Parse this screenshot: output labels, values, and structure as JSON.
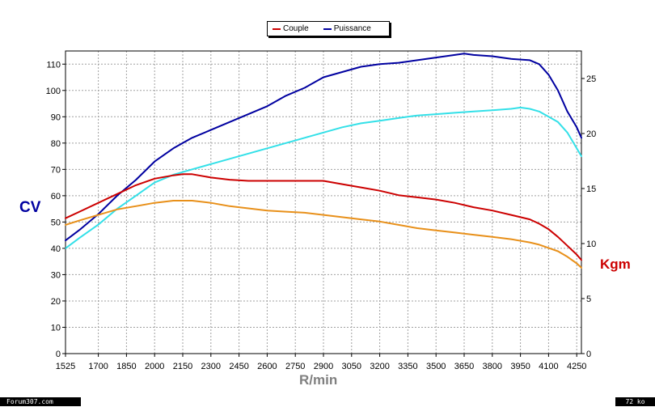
{
  "chart_data": {
    "type": "line",
    "title": "",
    "xlabel": "R/min",
    "ylabel_left": "CV",
    "ylabel_right": "Kgm",
    "xlim": [
      1525,
      4275
    ],
    "ylim_left": [
      0,
      115
    ],
    "ylim_right": [
      0,
      27.5
    ],
    "x_ticks": [
      1525,
      1700,
      1850,
      2000,
      2150,
      2300,
      2450,
      2600,
      2750,
      2900,
      3050,
      3200,
      3350,
      3500,
      3650,
      3800,
      3950,
      4100,
      4250
    ],
    "y_ticks_left": [
      0,
      10,
      20,
      30,
      40,
      50,
      60,
      70,
      80,
      90,
      100,
      110
    ],
    "y_ticks_right": [
      0,
      5,
      10,
      15,
      20,
      25
    ],
    "grid": true,
    "legend": {
      "placement": "top-center",
      "entries": [
        "Couple",
        "Puissance"
      ]
    },
    "series": [
      {
        "name": "Puissance",
        "axis": "left",
        "color": "#0000a0",
        "x": [
          1525,
          1600,
          1700,
          1800,
          1900,
          2000,
          2100,
          2200,
          2300,
          2400,
          2500,
          2600,
          2700,
          2800,
          2900,
          3000,
          3100,
          3200,
          3300,
          3400,
          3500,
          3600,
          3650,
          3700,
          3800,
          3900,
          4000,
          4050,
          4100,
          4150,
          4200,
          4250,
          4275
        ],
        "values": [
          43,
          47,
          53,
          60,
          66,
          73,
          78,
          82,
          85,
          88,
          91,
          94,
          98,
          101,
          105,
          107,
          109,
          110,
          110.5,
          111.5,
          112.5,
          113.5,
          114,
          113.5,
          113,
          112,
          111.5,
          110,
          106,
          100,
          92,
          86,
          82
        ]
      },
      {
        "name": "",
        "axis": "left",
        "color": "#33e0e8",
        "x": [
          1525,
          1600,
          1700,
          1800,
          1900,
          2000,
          2100,
          2200,
          2300,
          2400,
          2500,
          2600,
          2700,
          2800,
          2900,
          3000,
          3100,
          3200,
          3300,
          3400,
          3500,
          3600,
          3700,
          3800,
          3900,
          3950,
          4000,
          4050,
          4100,
          4150,
          4200,
          4250,
          4275
        ],
        "values": [
          40,
          44,
          49,
          55,
          60,
          65,
          68,
          70,
          72,
          74,
          76,
          78,
          80,
          82,
          84,
          86,
          87.5,
          88.5,
          89.5,
          90.5,
          91,
          91.5,
          92,
          92.5,
          93,
          93.5,
          93,
          92,
          90,
          88,
          84,
          78,
          75
        ]
      },
      {
        "name": "Couple",
        "axis": "right",
        "color": "#cc0000",
        "x": [
          1525,
          1600,
          1700,
          1800,
          1900,
          2000,
          2100,
          2150,
          2200,
          2300,
          2400,
          2500,
          2600,
          2700,
          2800,
          2900,
          3000,
          3100,
          3200,
          3300,
          3400,
          3500,
          3600,
          3700,
          3800,
          3900,
          4000,
          4050,
          4100,
          4150,
          4200,
          4250,
          4275
        ],
        "values": [
          12.3,
          12.9,
          13.7,
          14.5,
          15.3,
          15.9,
          16.2,
          16.3,
          16.3,
          16.0,
          15.8,
          15.7,
          15.7,
          15.7,
          15.7,
          15.7,
          15.4,
          15.1,
          14.8,
          14.4,
          14.2,
          14.0,
          13.7,
          13.3,
          13.0,
          12.6,
          12.2,
          11.8,
          11.3,
          10.6,
          9.8,
          9.0,
          8.5
        ]
      },
      {
        "name": "",
        "axis": "right",
        "color": "#e8901a",
        "x": [
          1525,
          1600,
          1700,
          1800,
          1900,
          2000,
          2100,
          2150,
          2200,
          2300,
          2400,
          2500,
          2600,
          2700,
          2800,
          2900,
          3000,
          3100,
          3200,
          3300,
          3400,
          3500,
          3600,
          3700,
          3800,
          3900,
          4000,
          4050,
          4100,
          4150,
          4200,
          4250,
          4275
        ],
        "values": [
          11.7,
          12.1,
          12.6,
          13.1,
          13.4,
          13.7,
          13.9,
          13.9,
          13.9,
          13.7,
          13.4,
          13.2,
          13.0,
          12.9,
          12.8,
          12.6,
          12.4,
          12.2,
          12.0,
          11.7,
          11.4,
          11.2,
          11.0,
          10.8,
          10.6,
          10.4,
          10.1,
          9.9,
          9.6,
          9.3,
          8.8,
          8.2,
          7.8
        ]
      }
    ]
  },
  "footer": {
    "left_text": "Forum307.com",
    "right_text": "72 ko"
  },
  "legend_labels": {
    "couple": "Couple",
    "puissance": "Puissance"
  }
}
